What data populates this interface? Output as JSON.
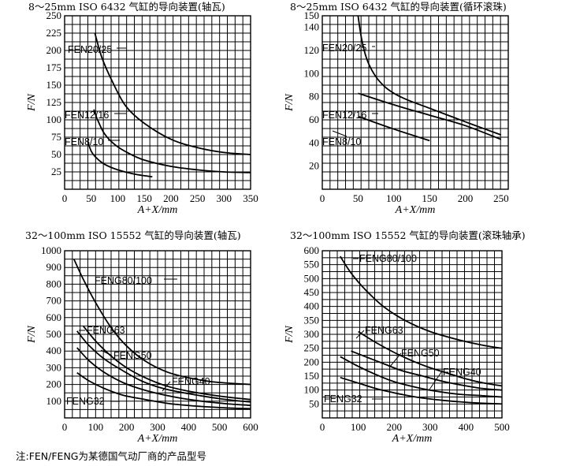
{
  "note": "注:FEN/FENG为某德国气动厂商的产品型号",
  "chart_data": [
    {
      "type": "line",
      "title": "8～25mm ISO 6432 气缸的导向装置(轴瓦)",
      "xlabel": "A+X/mm",
      "ylabel": "F/N",
      "xlim": [
        0,
        350
      ],
      "ylim": [
        0,
        250
      ],
      "xticks": [
        "0",
        "50",
        "100",
        "150",
        "200",
        "250",
        "300",
        "350"
      ],
      "yticks": [
        "25",
        "50",
        "75",
        "100",
        "125",
        "150",
        "175",
        "200",
        "225",
        "250"
      ],
      "grid": true,
      "series": [
        {
          "name": "FEN20/25",
          "x": [
            57,
            70,
            90,
            115,
            150,
            200,
            250,
            300,
            350
          ],
          "y": [
            225,
            190,
            155,
            120,
            95,
            72,
            60,
            53,
            50
          ]
        },
        {
          "name": "FEN12/16",
          "x": [
            55,
            62,
            75,
            95,
            120,
            150,
            200,
            250,
            300,
            350
          ],
          "y": [
            115,
            100,
            80,
            64,
            52,
            42,
            33,
            28,
            25,
            24
          ]
        },
        {
          "name": "FEN8/10",
          "x": [
            43,
            50,
            60,
            75,
            100,
            130,
            165
          ],
          "y": [
            70,
            55,
            45,
            36,
            28,
            22,
            18
          ]
        }
      ]
    },
    {
      "type": "line",
      "title": "8～25mm ISO 6432 气缸的导向装置(循环滚珠)",
      "xlabel": "A+X/mm",
      "ylabel": "F/N",
      "xlim": [
        0,
        260
      ],
      "ylim": [
        0,
        150
      ],
      "xticks": [
        "0",
        "50",
        "100",
        "150",
        "200",
        "250"
      ],
      "yticks": [
        "20",
        "40",
        "60",
        "80",
        "100",
        "120",
        "140",
        "150"
      ],
      "grid": true,
      "series": [
        {
          "name": "FEN20/25",
          "x": [
            50,
            55,
            62,
            72,
            85,
            100,
            120,
            150,
            180,
            210,
            250
          ],
          "y": [
            150,
            130,
            113,
            100,
            90,
            83,
            77,
            70,
            63,
            56,
            47
          ]
        },
        {
          "name": "FEN12/16",
          "x": [
            50,
            100,
            150,
            200,
            250
          ],
          "y": [
            83,
            73,
            64,
            55,
            43
          ]
        },
        {
          "name": "FEN8/10",
          "x": [
            50,
            100,
            150
          ],
          "y": [
            63,
            52,
            42
          ]
        }
      ]
    },
    {
      "type": "line",
      "title": "32～100mm ISO 15552 气缸的导向装置(轴瓦)",
      "xlabel": "A+X/mm",
      "ylabel": "F/N",
      "xlim": [
        0,
        600
      ],
      "ylim": [
        0,
        1000
      ],
      "xticks": [
        "0",
        "100",
        "200",
        "300",
        "400",
        "500",
        "600"
      ],
      "yticks": [
        "100",
        "200",
        "300",
        "400",
        "500",
        "600",
        "700",
        "800",
        "900",
        "1000"
      ],
      "grid": true,
      "series": [
        {
          "name": "FENG80/100",
          "x": [
            30,
            60,
            100,
            150,
            200,
            260,
            330,
            400,
            480,
            600
          ],
          "y": [
            950,
            830,
            690,
            540,
            430,
            340,
            275,
            240,
            215,
            200
          ]
        },
        {
          "name": "FENG63",
          "x": [
            60,
            100,
            150,
            200,
            260,
            330,
            400,
            500,
            600
          ],
          "y": [
            550,
            460,
            370,
            300,
            240,
            190,
            160,
            130,
            110
          ]
        },
        {
          "name": "FENG50",
          "x": [
            40,
            80,
            130,
            190,
            250,
            320,
            400,
            500,
            600
          ],
          "y": [
            520,
            430,
            350,
            280,
            220,
            175,
            145,
            115,
            95
          ]
        },
        {
          "name": "FENG40",
          "x": [
            40,
            80,
            130,
            190,
            260,
            340,
            420,
            520,
            600
          ],
          "y": [
            420,
            340,
            270,
            210,
            165,
            130,
            105,
            85,
            75
          ]
        },
        {
          "name": "FENG32",
          "x": [
            40,
            80,
            130,
            190,
            260,
            340,
            430,
            520,
            600
          ],
          "y": [
            270,
            220,
            175,
            135,
            110,
            85,
            70,
            60,
            55
          ]
        }
      ]
    },
    {
      "type": "line",
      "title": "32～100mm ISO 15552 气缸的导向装置(滚珠轴承)",
      "xlabel": "A+X/mm",
      "ylabel": "F/N",
      "xlim": [
        0,
        500
      ],
      "ylim": [
        0,
        600
      ],
      "xticks": [
        "0",
        "100",
        "200",
        "300",
        "400",
        "500"
      ],
      "yticks": [
        "50",
        "100",
        "150",
        "200",
        "250",
        "300",
        "350",
        "400",
        "450",
        "500",
        "550",
        "600"
      ],
      "grid": true,
      "series": [
        {
          "name": "FENG80/100",
          "x": [
            50,
            80,
            120,
            170,
            230,
            300,
            380,
            450,
            500
          ],
          "y": [
            580,
            520,
            460,
            400,
            350,
            310,
            280,
            260,
            250
          ]
        },
        {
          "name": "FENG63",
          "x": [
            100,
            150,
            200,
            250,
            300,
            350,
            400,
            450,
            500
          ],
          "y": [
            310,
            270,
            235,
            205,
            180,
            160,
            140,
            125,
            115
          ]
        },
        {
          "name": "FENG50",
          "x": [
            80,
            120,
            170,
            220,
            280,
            340,
            400,
            450,
            500
          ],
          "y": [
            240,
            220,
            195,
            170,
            150,
            130,
            115,
            105,
            100
          ]
        },
        {
          "name": "FENG40",
          "x": [
            50,
            100,
            150,
            200,
            260,
            320,
            380,
            440,
            500
          ],
          "y": [
            220,
            185,
            155,
            130,
            110,
            95,
            85,
            80,
            75
          ]
        },
        {
          "name": "FENG32",
          "x": [
            50,
            100,
            150,
            200,
            260,
            320,
            380,
            440,
            500
          ],
          "y": [
            145,
            125,
            105,
            90,
            75,
            65,
            58,
            53,
            50
          ]
        }
      ]
    }
  ]
}
